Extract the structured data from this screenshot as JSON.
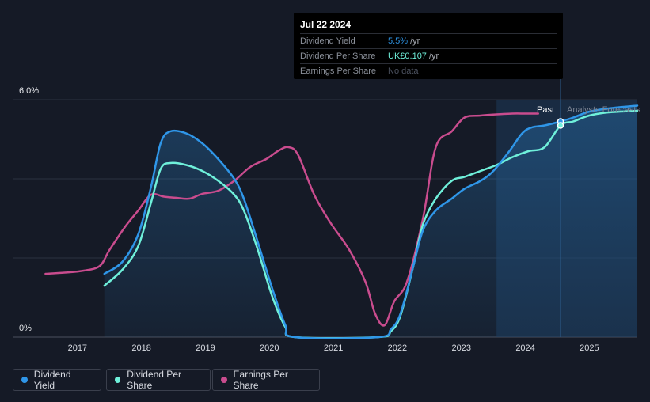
{
  "chart_data": {
    "type": "line",
    "title": "",
    "x_ticks": [
      "2017",
      "2018",
      "2019",
      "2020",
      "2021",
      "2022",
      "2023",
      "2024",
      "2025"
    ],
    "y_tick_labels": [
      "6.0%",
      "0%"
    ],
    "ylim": [
      0,
      6.0
    ],
    "xlim": [
      2016.0,
      2025.75
    ],
    "past_label": "Past",
    "forecast_label": "Analysts Forecasts",
    "divider_x": 2024.55,
    "forecast_shade_start": 2023.55,
    "series": [
      {
        "name": "Dividend Yield",
        "color": "#2f96e8",
        "points": [
          [
            2017.42,
            1.6
          ],
          [
            2017.7,
            1.9
          ],
          [
            2017.95,
            2.6
          ],
          [
            2018.15,
            3.8
          ],
          [
            2018.3,
            4.9
          ],
          [
            2018.45,
            5.2
          ],
          [
            2018.7,
            5.15
          ],
          [
            2018.95,
            4.9
          ],
          [
            2019.2,
            4.5
          ],
          [
            2019.45,
            4.0
          ],
          [
            2019.6,
            3.5
          ],
          [
            2019.8,
            2.5
          ],
          [
            2020.05,
            1.2
          ],
          [
            2020.25,
            0.3
          ],
          [
            2020.4,
            0.0
          ],
          [
            2021.7,
            0.0
          ],
          [
            2021.9,
            0.2
          ],
          [
            2022.05,
            0.6
          ],
          [
            2022.25,
            1.8
          ],
          [
            2022.4,
            2.7
          ],
          [
            2022.6,
            3.2
          ],
          [
            2022.85,
            3.5
          ],
          [
            2023.05,
            3.75
          ],
          [
            2023.3,
            3.95
          ],
          [
            2023.5,
            4.2
          ],
          [
            2023.75,
            4.7
          ],
          [
            2023.95,
            5.15
          ],
          [
            2024.1,
            5.3
          ],
          [
            2024.3,
            5.35
          ],
          [
            2024.55,
            5.45
          ],
          [
            2024.75,
            5.55
          ],
          [
            2025.0,
            5.7
          ],
          [
            2025.3,
            5.78
          ],
          [
            2025.75,
            5.85
          ]
        ]
      },
      {
        "name": "Dividend Per Share",
        "color": "#6ff0da",
        "points": [
          [
            2017.42,
            1.3
          ],
          [
            2017.7,
            1.7
          ],
          [
            2017.95,
            2.3
          ],
          [
            2018.15,
            3.4
          ],
          [
            2018.3,
            4.25
          ],
          [
            2018.45,
            4.4
          ],
          [
            2018.7,
            4.35
          ],
          [
            2018.95,
            4.2
          ],
          [
            2019.2,
            3.95
          ],
          [
            2019.45,
            3.6
          ],
          [
            2019.6,
            3.2
          ],
          [
            2019.8,
            2.3
          ],
          [
            2020.05,
            1.0
          ],
          [
            2020.25,
            0.25
          ],
          [
            2020.4,
            0.0
          ],
          [
            2021.7,
            0.0
          ],
          [
            2021.9,
            0.15
          ],
          [
            2022.05,
            0.55
          ],
          [
            2022.25,
            1.8
          ],
          [
            2022.4,
            2.85
          ],
          [
            2022.6,
            3.5
          ],
          [
            2022.85,
            3.95
          ],
          [
            2023.05,
            4.05
          ],
          [
            2023.3,
            4.2
          ],
          [
            2023.55,
            4.35
          ],
          [
            2023.8,
            4.55
          ],
          [
            2024.05,
            4.7
          ],
          [
            2024.3,
            4.8
          ],
          [
            2024.55,
            5.35
          ],
          [
            2024.75,
            5.45
          ],
          [
            2025.0,
            5.6
          ],
          [
            2025.3,
            5.68
          ],
          [
            2025.75,
            5.72
          ]
        ]
      },
      {
        "name": "Earnings Per Share",
        "color": "#c94c8e",
        "points": [
          [
            2016.5,
            1.6
          ],
          [
            2016.8,
            1.63
          ],
          [
            2017.1,
            1.68
          ],
          [
            2017.35,
            1.8
          ],
          [
            2017.5,
            2.2
          ],
          [
            2017.75,
            2.8
          ],
          [
            2017.95,
            3.2
          ],
          [
            2018.15,
            3.6
          ],
          [
            2018.35,
            3.55
          ],
          [
            2018.55,
            3.52
          ],
          [
            2018.75,
            3.5
          ],
          [
            2018.95,
            3.62
          ],
          [
            2019.2,
            3.7
          ],
          [
            2019.45,
            3.95
          ],
          [
            2019.7,
            4.3
          ],
          [
            2019.95,
            4.5
          ],
          [
            2020.15,
            4.72
          ],
          [
            2020.3,
            4.8
          ],
          [
            2020.45,
            4.6
          ],
          [
            2020.7,
            3.6
          ],
          [
            2020.95,
            2.9
          ],
          [
            2021.25,
            2.2
          ],
          [
            2021.5,
            1.4
          ],
          [
            2021.65,
            0.6
          ],
          [
            2021.8,
            0.3
          ],
          [
            2021.95,
            0.9
          ],
          [
            2022.15,
            1.4
          ],
          [
            2022.4,
            3.0
          ],
          [
            2022.6,
            4.8
          ],
          [
            2022.85,
            5.2
          ],
          [
            2023.05,
            5.55
          ],
          [
            2023.3,
            5.6
          ],
          [
            2023.55,
            5.63
          ],
          [
            2023.8,
            5.65
          ],
          [
            2024.0,
            5.65
          ],
          [
            2024.2,
            5.65
          ]
        ]
      }
    ],
    "markers": [
      {
        "series": "Dividend Yield",
        "x": 2024.55,
        "y": 5.45,
        "color": "#2f96e8"
      },
      {
        "series": "Dividend Per Share",
        "x": 2024.55,
        "y": 5.35,
        "color": "#6ff0da"
      }
    ]
  },
  "tooltip": {
    "date": "Jul 22 2024",
    "rows": [
      {
        "label": "Dividend Yield",
        "value": "5.5%",
        "unit": "/yr"
      },
      {
        "label": "Dividend Per Share",
        "value": "UK£0.107",
        "unit": "/yr"
      },
      {
        "label": "Earnings Per Share",
        "value": "No data",
        "unit": ""
      }
    ]
  },
  "legend": [
    {
      "label": "Dividend Yield",
      "color": "#2f96e8"
    },
    {
      "label": "Dividend Per Share",
      "color": "#6ff0da"
    },
    {
      "label": "Earnings Per Share",
      "color": "#c94c8e"
    }
  ]
}
